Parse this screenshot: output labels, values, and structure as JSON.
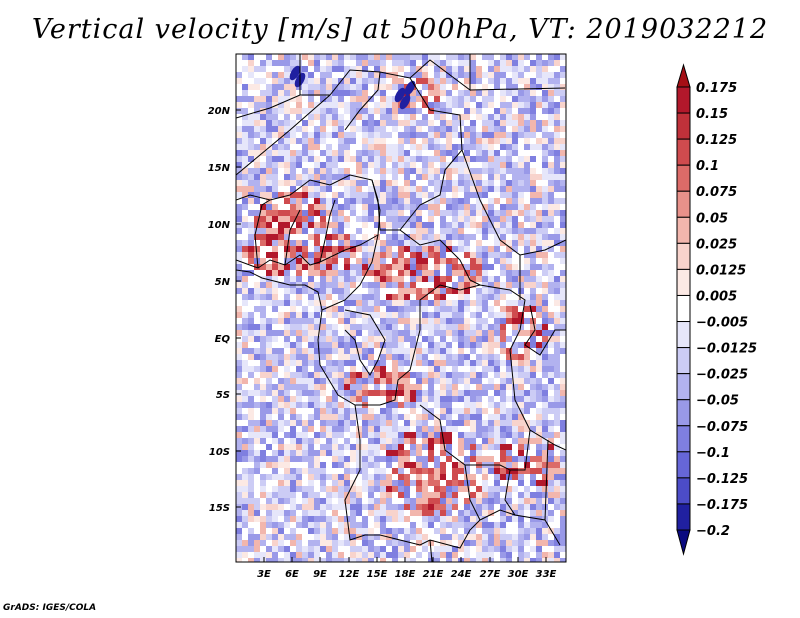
{
  "title": "Vertical velocity [m/s] at 500hPa, VT: 2019032212",
  "credit": "GrADS: IGES/COLA",
  "map": {
    "lon_ticks": [
      "3E",
      "6E",
      "9E",
      "12E",
      "15E",
      "18E",
      "21E",
      "24E",
      "27E",
      "30E",
      "33E"
    ],
    "lat_ticks": [
      "20N",
      "15N",
      "10N",
      "5N",
      "EQ",
      "5S",
      "10S",
      "15S"
    ]
  },
  "colorbar": {
    "labels": [
      "0.175",
      "0.15",
      "0.125",
      "0.1",
      "0.075",
      "0.05",
      "0.025",
      "0.0125",
      "0.005",
      "−0.005",
      "−0.0125",
      "−0.025",
      "−0.05",
      "−0.075",
      "−0.1",
      "−0.125",
      "−0.175",
      "−0.2"
    ],
    "colors": [
      "#a50f15",
      "#b2182b",
      "#c0313a",
      "#cf4b4e",
      "#dc6b68",
      "#e8918a",
      "#f2b6ad",
      "#f8d3cc",
      "#fce9e4",
      "#ffffff",
      "#e6e6fa",
      "#ccccf5",
      "#b2b2ef",
      "#9999e8",
      "#7f7fe0",
      "#6666d8",
      "#4c4cc8",
      "#2020a0",
      "#0a0a80"
    ]
  }
}
